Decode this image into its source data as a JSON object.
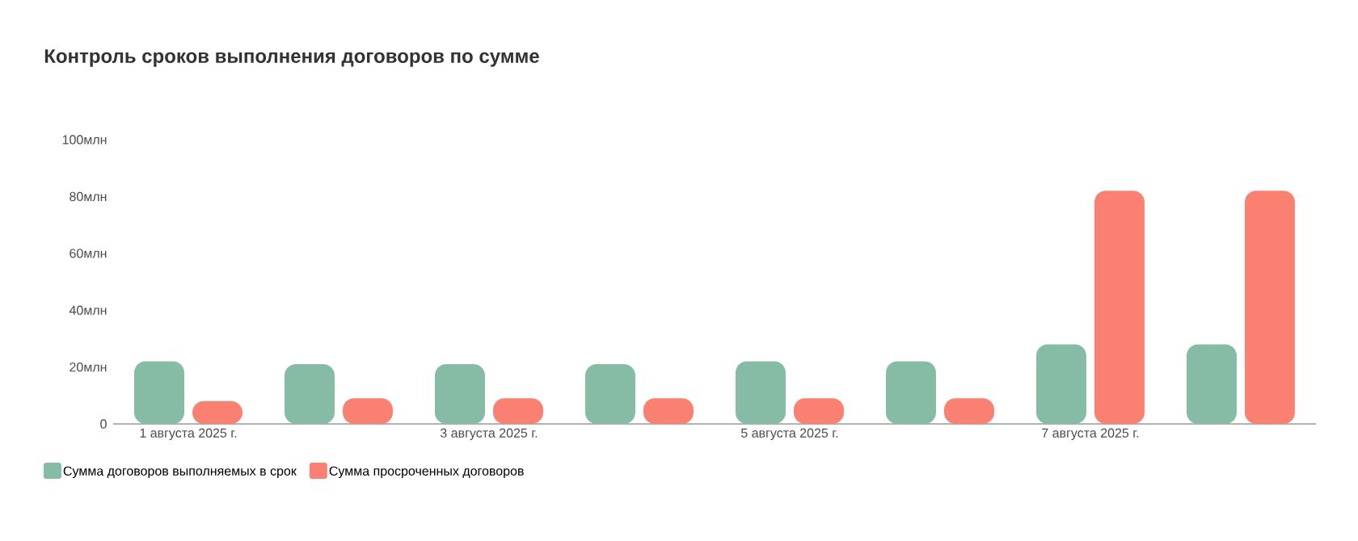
{
  "chart_data": {
    "type": "bar",
    "title": "Контроль сроков выполнения договоров по сумме",
    "categories": [
      "1 августа 2025 г.",
      null,
      "3 августа 2025 г.",
      null,
      "5 августа 2025 г.",
      null,
      "7 августа 2025 г.",
      null
    ],
    "series": [
      {
        "name": "Сумма договоров выполняемых в срок",
        "color": "#86bba6",
        "values": [
          22,
          21,
          21,
          21,
          22,
          22,
          28,
          28
        ]
      },
      {
        "name": "Сумма просроченных договоров",
        "color": "#fa8072",
        "values": [
          8,
          9,
          9,
          9,
          9,
          9,
          82,
          82
        ]
      }
    ],
    "ylim": [
      0,
      100
    ],
    "yticks": [
      0,
      {
        "value": 20,
        "label": "20млн"
      },
      {
        "value": 40,
        "label": "40млн"
      },
      {
        "value": 60,
        "label": "60млн"
      },
      {
        "value": 80,
        "label": "80млн"
      },
      {
        "value": 100,
        "label": "100млн"
      }
    ],
    "legend": "bottom left",
    "grid": false
  }
}
